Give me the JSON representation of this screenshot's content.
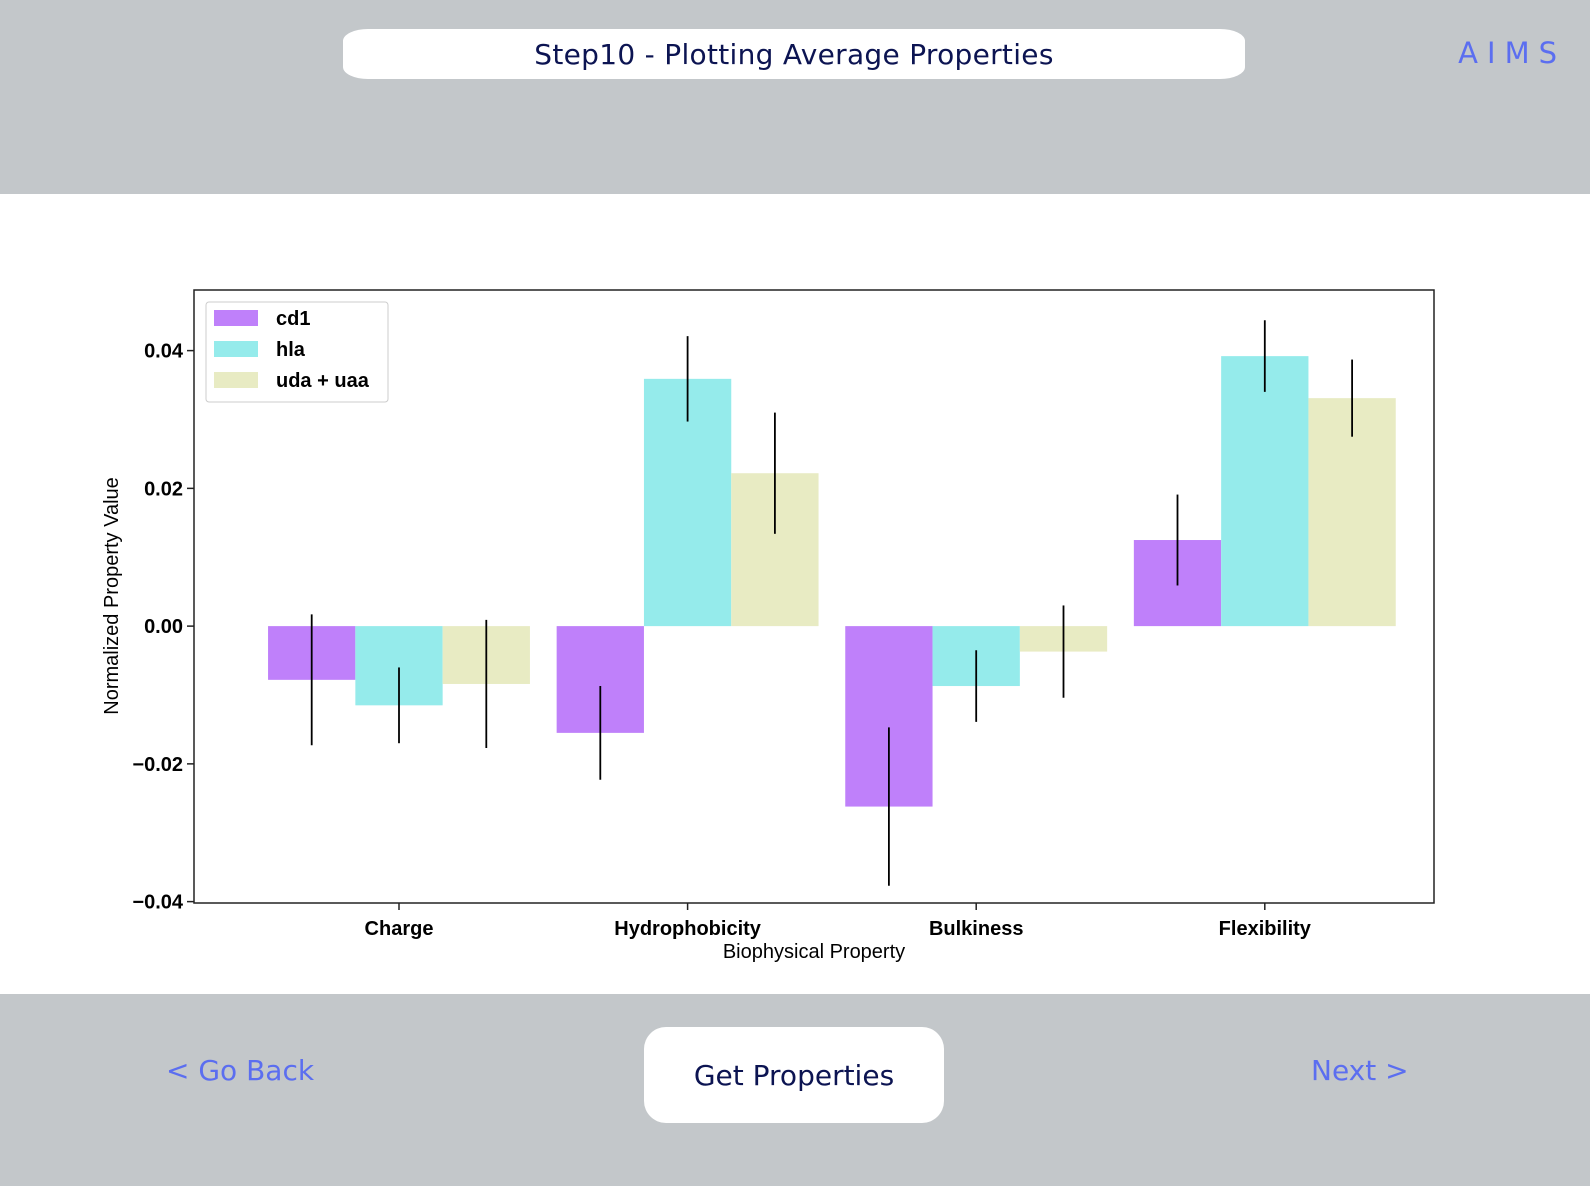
{
  "header": {
    "title": "Step10 - Plotting Average Properties",
    "brand": "AIMS"
  },
  "footer": {
    "back_label": "< Go Back",
    "primary_label": "Get Properties",
    "next_label": "Next >"
  },
  "colors": {
    "background": "#c3c7ca",
    "panel": "#ffffff",
    "accent": "#5b6ef0",
    "title_text": "#0c1452"
  },
  "chart_data": {
    "type": "bar",
    "title": "",
    "xlabel": "Biophysical Property",
    "ylabel": "Normalized Property Value",
    "categories": [
      "Charge",
      "Hydrophobicity",
      "Bulkiness",
      "Flexibility"
    ],
    "ylim": [
      -0.0402,
      0.0488
    ],
    "yticks": [
      0.04,
      0.02,
      0.0,
      -0.02,
      -0.04
    ],
    "ytick_labels": [
      "0.04",
      "0.02",
      "0.00",
      "−0.02",
      "−0.04"
    ],
    "legend": "top-left",
    "grid": false,
    "series": [
      {
        "name": "cd1",
        "color": "#bf80fa",
        "values": [
          -0.0078,
          -0.0155,
          -0.0262,
          0.0125
        ],
        "errors": [
          0.0095,
          0.0068,
          0.0115,
          0.0066
        ]
      },
      {
        "name": "hla",
        "color": "#95ebeb",
        "values": [
          -0.0115,
          0.0359,
          -0.0087,
          0.0392
        ],
        "errors": [
          0.0055,
          0.0062,
          0.0052,
          0.0052
        ]
      },
      {
        "name": "uda + uaa",
        "color": "#e8ebc3",
        "values": [
          -0.0084,
          0.0222,
          -0.0037,
          0.0331
        ],
        "errors": [
          0.0093,
          0.0088,
          0.0067,
          0.0056
        ]
      }
    ]
  }
}
